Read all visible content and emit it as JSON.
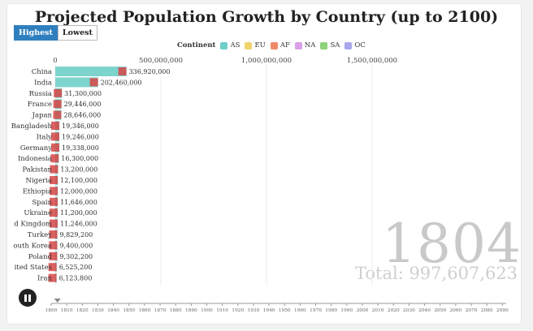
{
  "title": "Projected Population Growth by Country (up to 2100)",
  "buttons": {
    "highest": "Highest",
    "lowest": "Lowest"
  },
  "legend": {
    "title": "Continent",
    "items": [
      {
        "label": "AS",
        "color": "#6fcfc6"
      },
      {
        "label": "EU",
        "color": "#f1d36b"
      },
      {
        "label": "AF",
        "color": "#ee8a6a"
      },
      {
        "label": "NA",
        "color": "#d9a0e6"
      },
      {
        "label": "SA",
        "color": "#8fd27a"
      },
      {
        "label": "OC",
        "color": "#a9a7ee"
      }
    ]
  },
  "year": "1804",
  "total": "Total: 997,607,623",
  "chart_data": {
    "type": "bar",
    "orientation": "horizontal",
    "xlim": [
      0,
      2000000000
    ],
    "x_ticks": [
      0,
      500000000,
      1000000000,
      1500000000
    ],
    "x_tick_labels": [
      "0",
      "500,000,000",
      "1,000,000,000",
      "1,500,000,000"
    ],
    "categories": [
      "China",
      "India",
      "Russia",
      "France",
      "Japan",
      "Bangladesh",
      "Italy",
      "Germany",
      "Indonesia",
      "Pakistan",
      "Nigeria",
      "Ethiopia",
      "Spain",
      "Ukraine",
      "United Kingdom",
      "Turkey",
      "South Korea",
      "Poland",
      "United States",
      "Iran"
    ],
    "category_labels": [
      "China",
      "India",
      "Russia",
      "France",
      "Japan",
      "Bangladesh",
      "Italy",
      "Germany",
      "Indonesia",
      "Pakistan",
      "Nigeria",
      "Ethiopia",
      "Spain",
      "Ukraine",
      "d Kingdom",
      "Turkey",
      "outh Korea",
      "Poland",
      "ited States",
      "Iran"
    ],
    "values": [
      336920000,
      202460000,
      31300000,
      29446000,
      28646000,
      19346000,
      19246000,
      19338000,
      16300000,
      13200000,
      12100000,
      12000000,
      11646000,
      11200000,
      11246000,
      9829200,
      9400000,
      9302200,
      6525200,
      6123800
    ],
    "value_labels": [
      "336,920,000",
      "202,460,000",
      "31,300,000",
      "29,446,000",
      "28,646,000",
      "19,346,000",
      "19,246,000",
      "19,338,000",
      "16,300,000",
      "13,200,000",
      "12,100,000",
      "12,000,000",
      "11,646,000",
      "11,200,000",
      "11,246,000",
      "9,829,200",
      "9,400,000",
      "9,302,200",
      "6,525,200",
      "6,123,800"
    ],
    "bar_color": "#6fcfc6",
    "grid": true
  },
  "timeline": {
    "current": 1804,
    "ticks": [
      "1800",
      "1810",
      "1820",
      "1830",
      "1840",
      "1850",
      "1860",
      "1870",
      "1880",
      "1890",
      "1900",
      "1910",
      "1920",
      "1930",
      "1940",
      "1950",
      "1960",
      "1970",
      "1980",
      "1990",
      "2000",
      "2010",
      "2020",
      "2030",
      "2040",
      "2050",
      "2060",
      "2070",
      "2080",
      "2090"
    ]
  }
}
